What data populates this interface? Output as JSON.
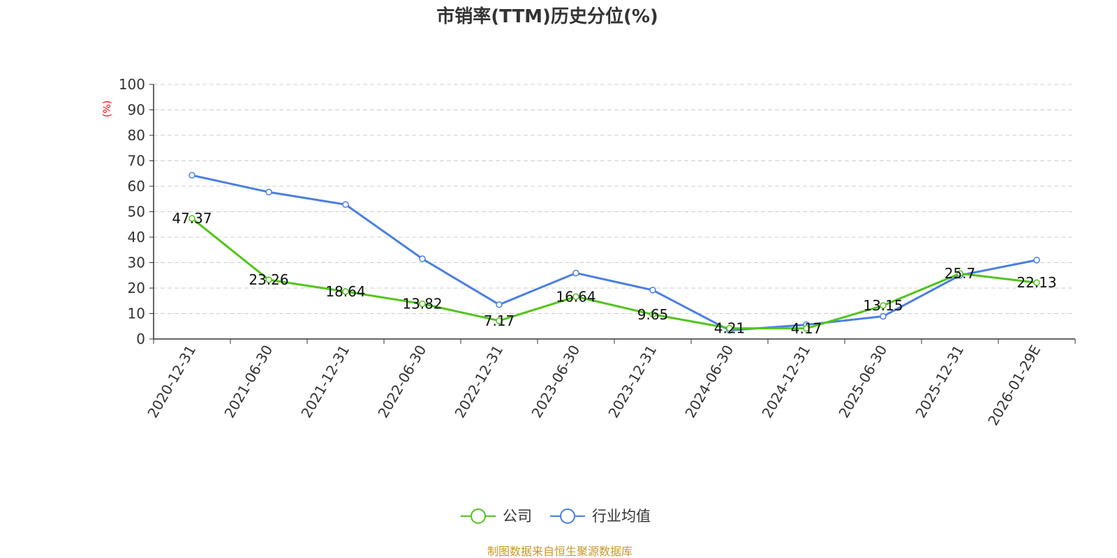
{
  "chart_data": {
    "type": "line",
    "title": "市销率(TTM)历史分位(%)",
    "ylabel": "(%)",
    "xlabel": "",
    "categories": [
      "2020-12-31",
      "2021-06-30",
      "2021-12-31",
      "2022-06-30",
      "2022-12-31",
      "2023-06-30",
      "2023-12-31",
      "2024-06-30",
      "2024-12-31",
      "2025-06-30",
      "2025-12-31",
      "2026-01-29E"
    ],
    "ylim": [
      0,
      100
    ],
    "yticks": [
      0,
      10,
      20,
      30,
      40,
      50,
      60,
      70,
      80,
      90,
      100
    ],
    "grid": true,
    "legend_position": "bottom-center",
    "series": [
      {
        "name": "公司",
        "color": "#52c41a",
        "values": [
          47.37,
          23.26,
          18.64,
          13.82,
          7.17,
          16.64,
          9.65,
          4.21,
          4.17,
          13.15,
          25.7,
          22.13
        ],
        "labels": [
          "47.37",
          "23.26",
          "18.64",
          "13.82",
          "7.17",
          "16.64",
          "9.65",
          "4.21",
          "4.17",
          "13.15",
          "25.7",
          "22.13"
        ]
      },
      {
        "name": "行业均值",
        "color": "#4a7fe0",
        "values": [
          64.3,
          57.7,
          52.8,
          31.5,
          13.5,
          25.9,
          19.2,
          3.4,
          5.6,
          8.9,
          25.0,
          31.0
        ]
      }
    ],
    "source": "制图数据来自恒生聚源数据库",
    "source_color": "#c8972a",
    "ylabel_color": "#ff0000"
  }
}
